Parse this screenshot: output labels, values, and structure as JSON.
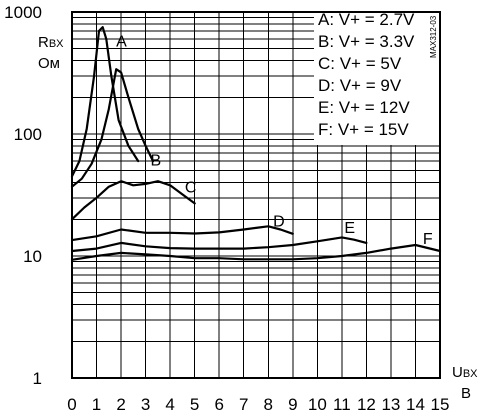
{
  "chart_data": {
    "type": "line",
    "part_number": "MAX312-03",
    "ylabel": {
      "main": "R",
      "sub": "BX",
      "unit": "Ом"
    },
    "xlabel": {
      "main": "U",
      "sub": "BX",
      "unit": "B"
    },
    "x_ticks": [
      "0",
      "1",
      "2",
      "3",
      "4",
      "5",
      "6",
      "7",
      "8",
      "9",
      "10",
      "11",
      "12",
      "13",
      "14",
      "15"
    ],
    "y_ticks": [
      {
        "value": 1000,
        "label": "1000"
      },
      {
        "value": 100,
        "label": "100"
      },
      {
        "value": 10,
        "label": "10"
      },
      {
        "value": 1,
        "label": "1"
      }
    ],
    "xlim": [
      0,
      15
    ],
    "ylim": [
      1,
      1000
    ],
    "y_scale": "log",
    "grid": true,
    "legend_position": "top-right",
    "legend": [
      "A: V+ = 2.7V",
      "B: V+ = 3.3V",
      "C: V+ = 5V",
      "D: V+ = 9V",
      "E: V+ = 12V",
      "F: V+ = 15V"
    ],
    "series": [
      {
        "name": "A",
        "x": [
          0,
          0.3,
          0.6,
          0.9,
          1.1,
          1.25,
          1.4,
          1.6,
          1.9,
          2.3,
          2.7
        ],
        "y": [
          45,
          60,
          110,
          300,
          700,
          750,
          600,
          300,
          130,
          80,
          60
        ]
      },
      {
        "name": "B",
        "x": [
          0,
          0.4,
          0.8,
          1.2,
          1.5,
          1.8,
          2.0,
          2.3,
          2.7,
          3.0,
          3.3
        ],
        "y": [
          37,
          43,
          57,
          90,
          160,
          340,
          320,
          200,
          110,
          80,
          60
        ]
      },
      {
        "name": "C",
        "x": [
          0,
          0.5,
          1.0,
          1.5,
          2.0,
          2.5,
          3.0,
          3.5,
          4.0,
          4.5,
          5.0
        ],
        "y": [
          20,
          25,
          30,
          37,
          41,
          38,
          39,
          41,
          38,
          32,
          27
        ]
      },
      {
        "name": "D",
        "x": [
          0,
          1,
          2,
          3,
          4,
          5,
          6,
          7,
          7.5,
          8,
          8.5,
          9
        ],
        "y": [
          13.5,
          14.5,
          16.5,
          15.5,
          15.5,
          15.3,
          15.6,
          16.5,
          17,
          17.5,
          16.5,
          15.2
        ]
      },
      {
        "name": "E",
        "x": [
          0,
          1,
          2,
          3,
          4,
          5,
          6,
          7,
          8,
          9,
          10,
          11,
          11.5,
          12
        ],
        "y": [
          11,
          11.5,
          12.8,
          12,
          11.6,
          11.5,
          11.5,
          11.5,
          11.8,
          12.3,
          13.2,
          14.2,
          13.6,
          12.8
        ]
      },
      {
        "name": "F",
        "x": [
          0,
          1,
          2,
          3,
          4,
          5,
          6,
          7,
          8,
          9,
          10,
          11,
          12,
          13,
          14,
          15
        ],
        "y": [
          9.3,
          10,
          10.6,
          10.3,
          10,
          9.6,
          9.6,
          9.4,
          9.4,
          9.4,
          9.6,
          10,
          10.6,
          11.5,
          12.3,
          11
        ]
      }
    ]
  }
}
